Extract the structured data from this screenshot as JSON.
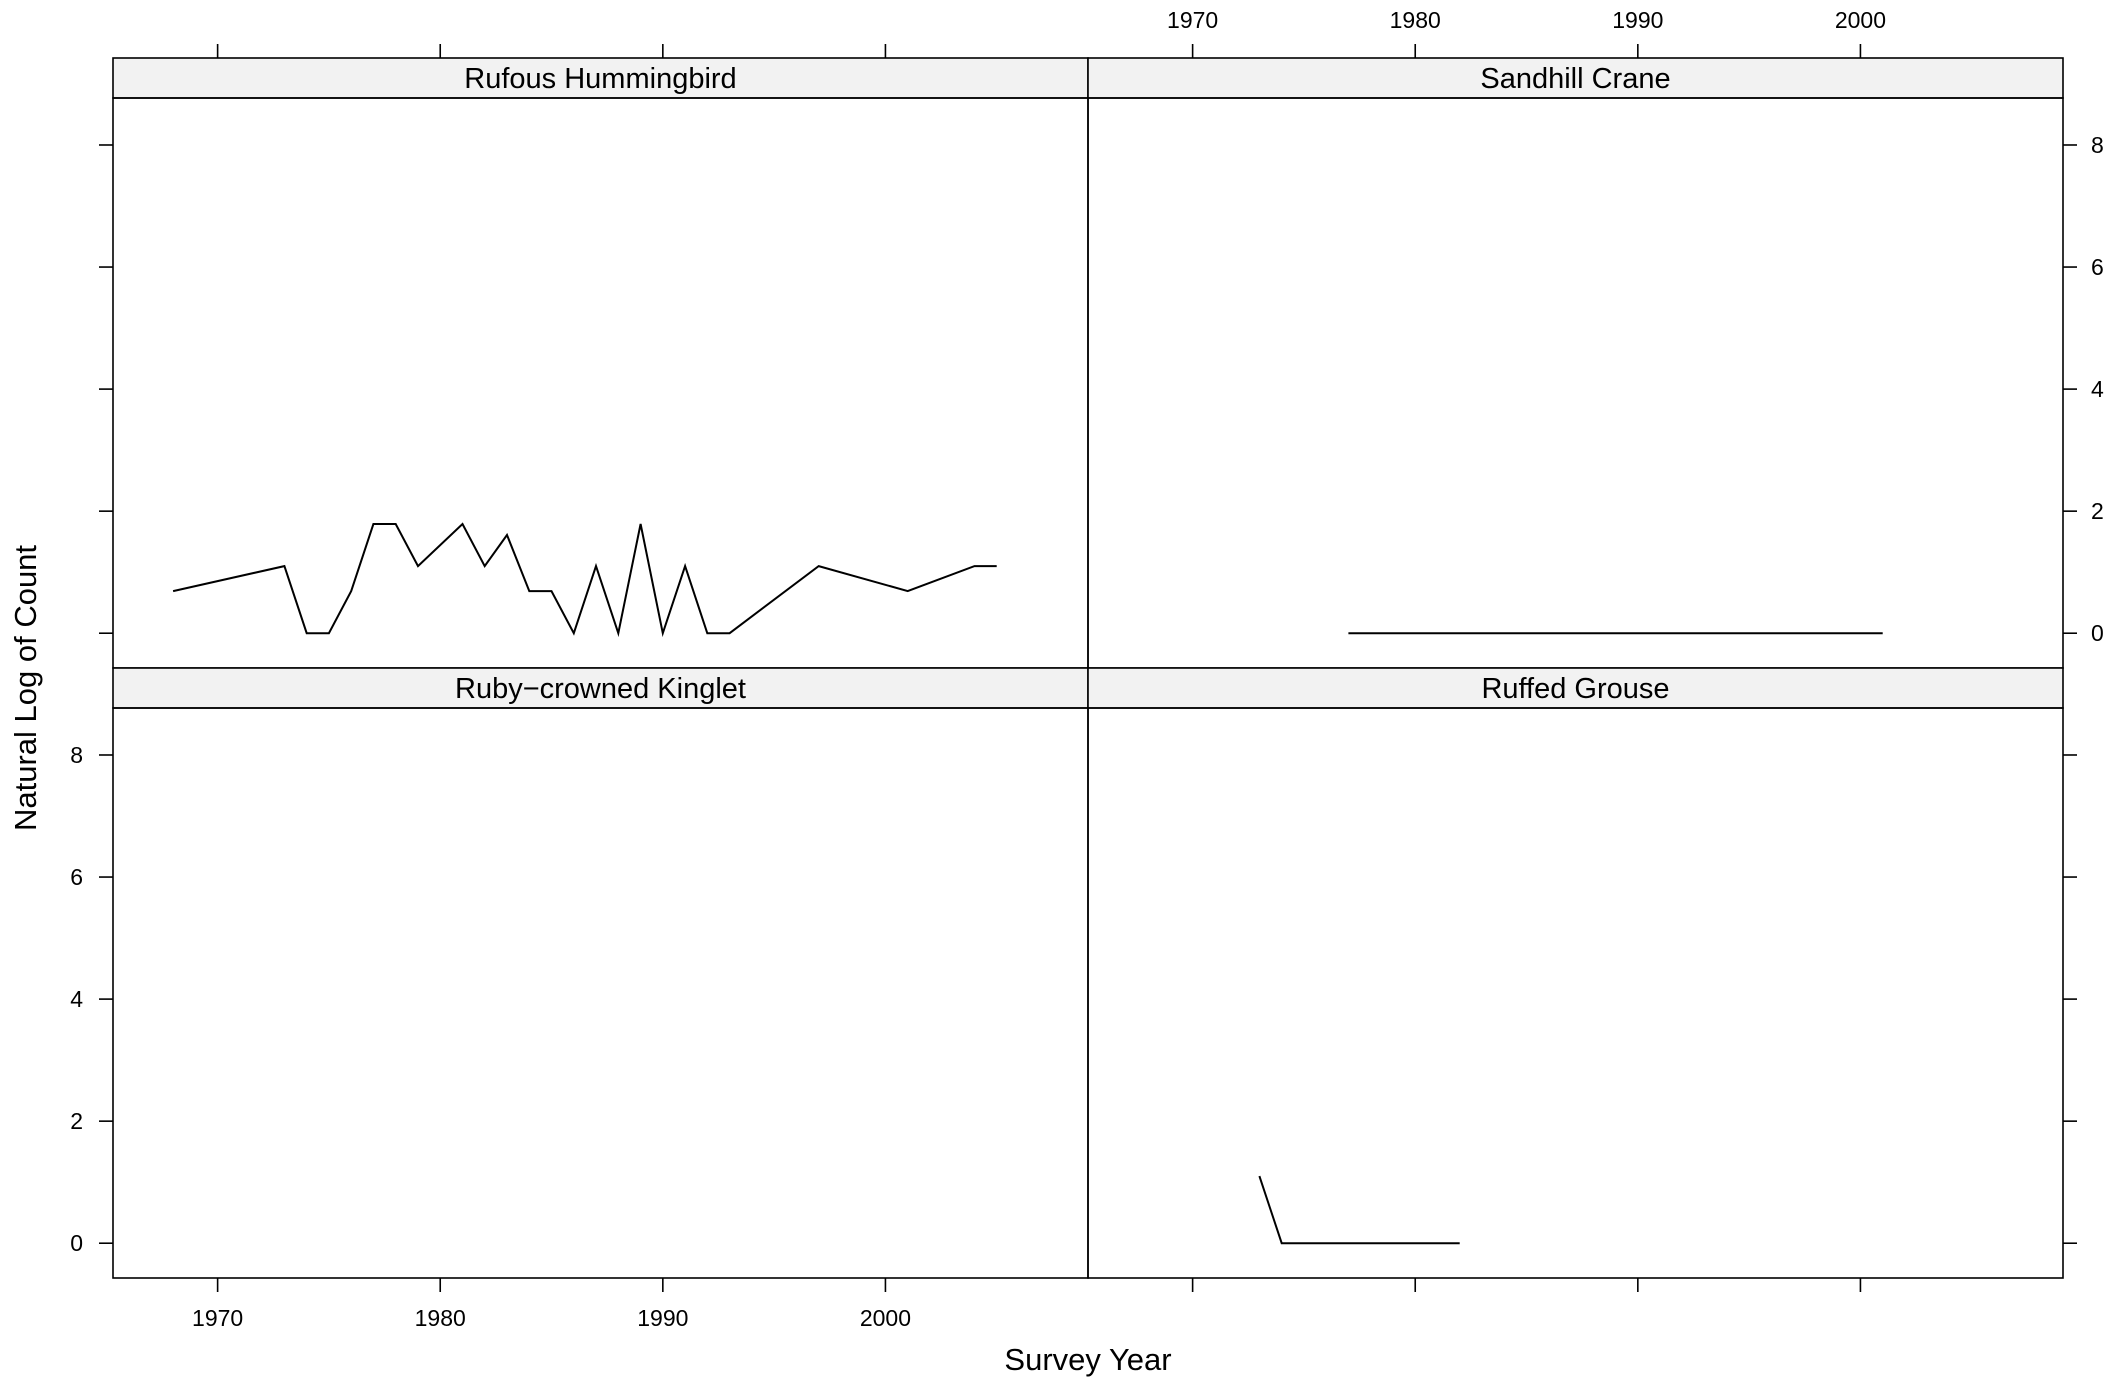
{
  "chart_data": {
    "type": "line",
    "layout": "2x2 lattice panels",
    "xlabel": "Survey Year",
    "ylabel": "Natural Log of Count",
    "xlim": [
      1965.3,
      2009.1
    ],
    "ylim": [
      -0.57,
      8.77
    ],
    "x_ticks": [
      1970,
      1980,
      1990,
      2000
    ],
    "y_ticks": [
      0,
      2,
      4,
      6,
      8
    ],
    "line_color": "#000000",
    "strip_color": "#f2f2f2",
    "panels": [
      {
        "title": "Rufous Hummingbird",
        "x": [
          1968,
          1973,
          1974,
          1975,
          1976,
          1977,
          1978,
          1979,
          1981,
          1982,
          1983,
          1984,
          1985,
          1986,
          1987,
          1988,
          1989,
          1990,
          1991,
          1992,
          1993,
          1997,
          2001,
          2004,
          2005
        ],
        "y": [
          0.69,
          1.1,
          0,
          0,
          0.69,
          1.79,
          1.79,
          1.1,
          1.79,
          1.1,
          1.61,
          0.69,
          0.69,
          0,
          1.1,
          0,
          1.79,
          0,
          1.1,
          0,
          0,
          1.1,
          0.69,
          1.1,
          1.1
        ]
      },
      {
        "title": "Sandhill Crane",
        "x": [
          1977,
          2001
        ],
        "y": [
          0,
          0
        ]
      },
      {
        "title": "Ruby−crowned Kinglet",
        "x": [],
        "y": []
      },
      {
        "title": "Ruffed Grouse",
        "x": [
          1973,
          1974,
          1982
        ],
        "y": [
          1.1,
          0,
          0
        ]
      }
    ]
  }
}
